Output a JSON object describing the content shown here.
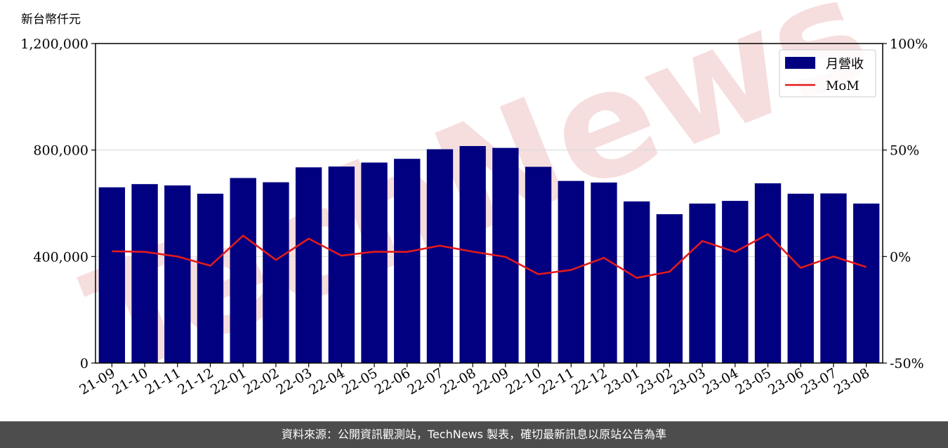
{
  "colors": {
    "bar": "#000080",
    "line": "#e31a1c",
    "grid": "#d9d9d9",
    "watermark": "#f6dede",
    "footer_bg": "#4d4d4d"
  },
  "watermark": {
    "text": "TechNews"
  },
  "footer": {
    "text": "資料來源：公開資訊觀測站，TechNews 製表，確切最新訊息以原站公告為準"
  },
  "chart_data": {
    "type": "bar",
    "unit_label": "新台幣仟元",
    "categories": [
      "21-09",
      "21-10",
      "21-11",
      "21-12",
      "22-01",
      "22-02",
      "22-03",
      "22-04",
      "22-05",
      "22-06",
      "22-07",
      "22-08",
      "22-09",
      "22-10",
      "22-11",
      "22-12",
      "23-01",
      "23-02",
      "23-03",
      "23-04",
      "23-05",
      "23-06",
      "23-07",
      "23-08"
    ],
    "series": [
      {
        "name": "月營收",
        "type": "bar",
        "axis": "left",
        "values": [
          660000,
          672000,
          667000,
          636000,
          695000,
          679000,
          735000,
          738000,
          753000,
          767000,
          803000,
          815000,
          808000,
          737000,
          684000,
          678000,
          607000,
          559000,
          599000,
          609000,
          675000,
          636000,
          637000,
          599000
        ]
      },
      {
        "name": "MoM",
        "type": "line",
        "axis": "right",
        "values": [
          2.5,
          2.2,
          0.0,
          -4.3,
          9.8,
          -1.6,
          8.4,
          0.4,
          2.3,
          2.2,
          5.1,
          2.3,
          -0.2,
          -8.3,
          -6.3,
          -0.6,
          -10.0,
          -7.1,
          7.3,
          2.2,
          10.5,
          -5.3,
          0.0,
          -4.9
        ]
      }
    ],
    "y_left": {
      "min": 0,
      "max": 1200000,
      "ticks": [
        0,
        400000,
        800000,
        1200000
      ],
      "tick_labels": [
        "0",
        "400,000",
        "800,000",
        "1,200,000"
      ]
    },
    "y_right": {
      "min": -50,
      "max": 100,
      "ticks": [
        -50,
        0,
        50,
        100
      ],
      "tick_labels": [
        "-50%",
        "0%",
        "50%",
        "100%"
      ]
    },
    "grid": "horizontal",
    "legend": "top-right"
  }
}
